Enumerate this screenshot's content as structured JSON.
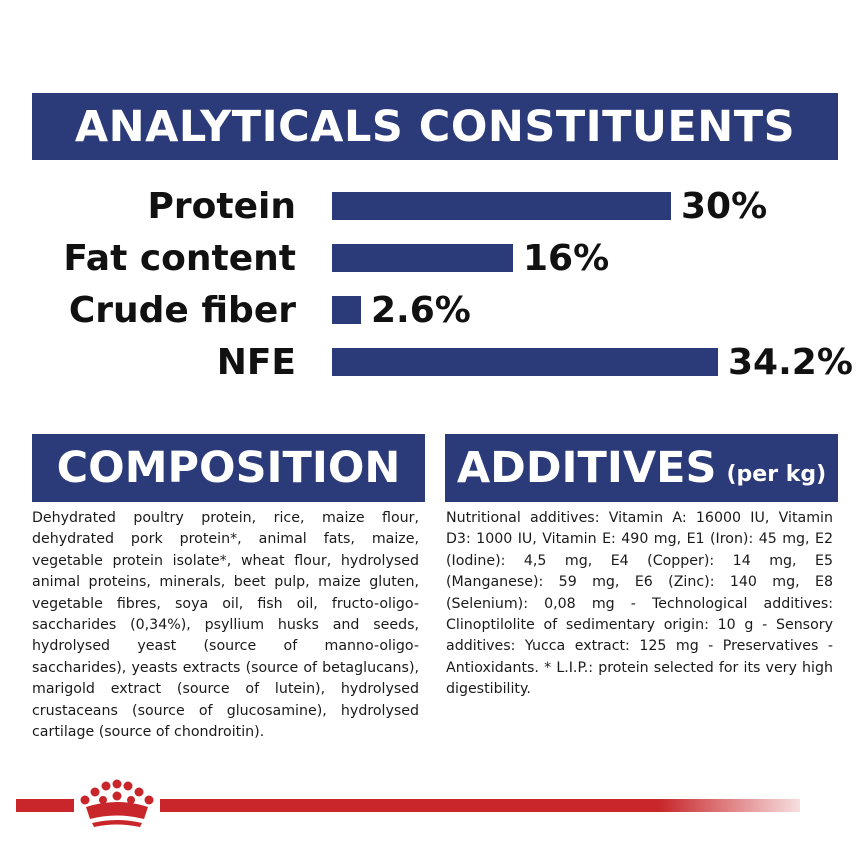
{
  "analytics": {
    "title": "ANALYTICALS CONSTITUENTS",
    "bar_color": "#2b3a78",
    "rows": [
      {
        "label": "Protein",
        "value": "30%",
        "percent": 30
      },
      {
        "label": "Fat content",
        "value": "16%",
        "percent": 16
      },
      {
        "label": "Crude fiber",
        "value": "2.6%",
        "percent": 2.6
      },
      {
        "label": "NFE",
        "value": "34.2%",
        "percent": 34.2
      }
    ]
  },
  "composition": {
    "title": "COMPOSITION",
    "text": "Dehydrated poultry protein, rice, maize flour, dehydrated pork protein*, animal fats, maize, vegetable protein isolate*, wheat flour, hydrolysed animal proteins, minerals, beet pulp, maize gluten, vegetable fibres, soya oil, fish oil, fructo-oligo-saccharides (0,34%), psyllium husks and seeds, hydrolysed yeast (source of manno-oligo-saccharides), yeasts extracts (source of betaglucans), marigold extract (source of lutein), hydrolysed crustaceans (source of glucosamine), hydrolysed cartilage (source of chondroitin)."
  },
  "additives": {
    "title": "ADDITIVES",
    "title_suffix": "(per kg)",
    "text": "Nutritional additives: Vitamin A: 16000 IU, Vitamin D3: 1000 IU, Vitamin E: 490 mg, E1 (Iron): 45 mg, E2 (Iodine): 4,5 mg, E4 (Copper): 14 mg, E5 (Manganese): 59 mg, E6 (Zinc): 140 mg, E8 (Selenium): 0,08 mg - Technological additives: Clinoptilolite of sedimentary origin: 10 g - Sensory additives: Yucca extract: 125 mg - Preservatives - Antioxidants. * L.I.P.: protein selected for its very high digestibility."
  },
  "footer": {
    "logo_icon": "crown-icon",
    "accent_color": "#c8262a"
  }
}
